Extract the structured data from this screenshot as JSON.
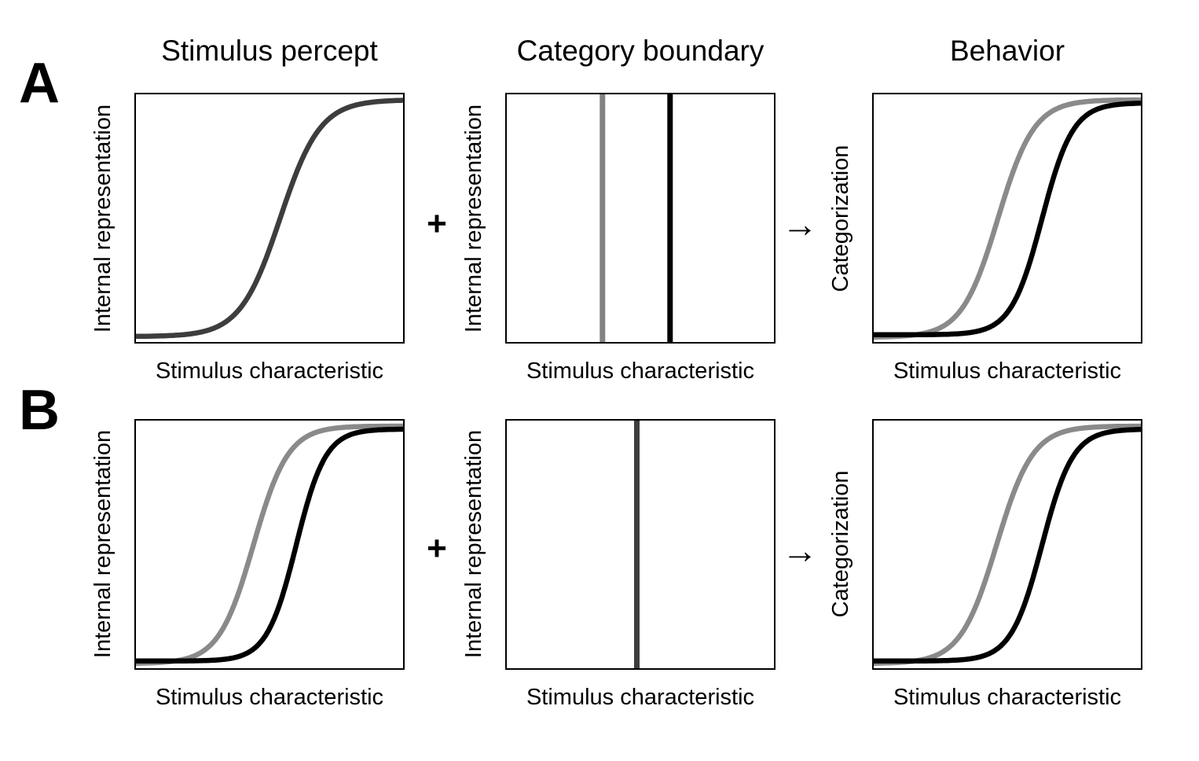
{
  "figure": {
    "row_labels": [
      {
        "label": "A"
      },
      {
        "label": "B"
      }
    ],
    "operators": {
      "plus": "+",
      "arrow": "→"
    },
    "colors": {
      "black": "#000000",
      "dark_gray": "#3d3d3d",
      "gray": "#8a8a8a",
      "boundary_gray": "#828282",
      "border": "#000000",
      "background": "#ffffff"
    },
    "chart_data": [
      {
        "id": "A1",
        "type": "line",
        "title": "Stimulus percept",
        "xlabel": "Stimulus characteristic",
        "ylabel": "Internal representation",
        "xlim": [
          0,
          1
        ],
        "ylim": [
          0,
          1
        ],
        "grid": false,
        "curves": [
          {
            "name": "percept-sigmoid",
            "color": "dark_gray",
            "midpoint": 0.54,
            "steepness": 0.075,
            "y_min": 0.028,
            "y_max": 0.972
          }
        ]
      },
      {
        "id": "A2",
        "type": "vline",
        "title": "Category boundary",
        "xlabel": "Stimulus characteristic",
        "ylabel": "Internal representation",
        "xlim": [
          0,
          1
        ],
        "ylim": [
          0,
          1
        ],
        "grid": false,
        "boundaries": [
          {
            "name": "gray-boundary",
            "color": "boundary_gray",
            "x": 0.36
          },
          {
            "name": "black-boundary",
            "color": "black",
            "x": 0.61
          }
        ]
      },
      {
        "id": "A3",
        "type": "line",
        "title": "Behavior",
        "xlabel": "Stimulus characteristic",
        "ylabel": "Categorization",
        "xlim": [
          0,
          1
        ],
        "ylim": [
          0,
          1
        ],
        "grid": false,
        "curves": [
          {
            "name": "behavior-gray-sigmoid",
            "color": "gray",
            "midpoint": 0.465,
            "steepness": 0.068,
            "y_min": 0.025,
            "y_max": 0.972
          },
          {
            "name": "behavior-black-sigmoid",
            "color": "black",
            "midpoint": 0.63,
            "steepness": 0.058,
            "y_min": 0.035,
            "y_max": 0.96
          }
        ]
      },
      {
        "id": "B1",
        "type": "line",
        "title": "",
        "xlabel": "Stimulus characteristic",
        "ylabel": "Internal representation",
        "xlim": [
          0,
          1
        ],
        "ylim": [
          0,
          1
        ],
        "grid": false,
        "curves": [
          {
            "name": "percept-gray-sigmoid",
            "color": "gray",
            "midpoint": 0.44,
            "steepness": 0.065,
            "y_min": 0.025,
            "y_max": 0.972
          },
          {
            "name": "percept-black-sigmoid",
            "color": "black",
            "midpoint": 0.6,
            "steepness": 0.055,
            "y_min": 0.035,
            "y_max": 0.96
          }
        ]
      },
      {
        "id": "B2",
        "type": "vline",
        "title": "",
        "xlabel": "Stimulus characteristic",
        "ylabel": "Internal representation",
        "xlim": [
          0,
          1
        ],
        "ylim": [
          0,
          1
        ],
        "grid": false,
        "boundaries": [
          {
            "name": "shared-boundary",
            "color": "dark_gray",
            "x": 0.487
          }
        ]
      },
      {
        "id": "B3",
        "type": "line",
        "title": "",
        "xlabel": "Stimulus characteristic",
        "ylabel": "Categorization",
        "xlim": [
          0,
          1
        ],
        "ylim": [
          0,
          1
        ],
        "grid": false,
        "curves": [
          {
            "name": "behavior-gray-sigmoid",
            "color": "gray",
            "midpoint": 0.46,
            "steepness": 0.068,
            "y_min": 0.025,
            "y_max": 0.972
          },
          {
            "name": "behavior-black-sigmoid",
            "color": "black",
            "midpoint": 0.63,
            "steepness": 0.058,
            "y_min": 0.035,
            "y_max": 0.96
          }
        ]
      }
    ]
  }
}
